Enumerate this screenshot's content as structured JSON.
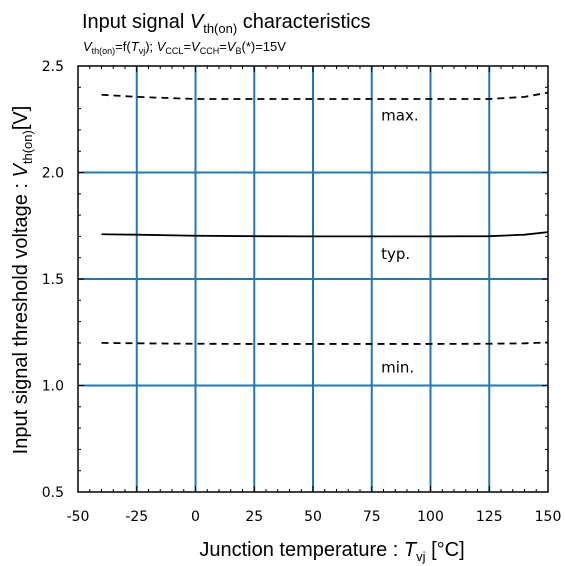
{
  "chart_data": {
    "type": "line",
    "title": {
      "prefix": "Input signal ",
      "symbol": "V",
      "symbol_sub": "th(on)",
      "suffix": " characteristics"
    },
    "subtitle": {
      "a": "V",
      "a_sub": "th(on)",
      "b": "=f(",
      "c": "T",
      "c_sub": "vj",
      "d": "); ",
      "e": "V",
      "e_sub": "CCL",
      "f": "=",
      "g": "V",
      "g_sub": "CCH",
      "h": "=",
      "i": "V",
      "i_sub": "B",
      "j": "(*)=15V"
    },
    "xlabel": {
      "text": "Junction temperature : ",
      "symbol": "T",
      "symbol_sub": "vj",
      "unit": " [°C]"
    },
    "ylabel": {
      "text": "Input signal threshold voltage : ",
      "symbol": "V",
      "symbol_sub": "th(on)",
      "unit": "[V]"
    },
    "xlim": [
      -50,
      150
    ],
    "ylim": [
      0.5,
      2.5
    ],
    "xticks": [
      -50,
      -25,
      0,
      25,
      50,
      75,
      100,
      125,
      150
    ],
    "xtick_labels": [
      "-50",
      "-25",
      "0",
      "25",
      "50",
      "75",
      "100",
      "125",
      "150"
    ],
    "yticks": [
      0.5,
      1.0,
      1.5,
      2.0,
      2.5
    ],
    "ytick_labels": [
      "0.5",
      "1.0",
      "1.5",
      "2.0",
      "2.5"
    ],
    "grid": true,
    "grid_color": "#1f78b8",
    "series": [
      {
        "name": "max.",
        "style": "dashed",
        "color": "#000000",
        "x": [
          -40,
          -25,
          0,
          25,
          50,
          75,
          100,
          125,
          140,
          150
        ],
        "y": [
          2.365,
          2.355,
          2.345,
          2.345,
          2.345,
          2.345,
          2.345,
          2.345,
          2.355,
          2.375
        ]
      },
      {
        "name": "typ.",
        "style": "solid",
        "color": "#000000",
        "x": [
          -40,
          -25,
          0,
          25,
          50,
          75,
          100,
          125,
          140,
          150
        ],
        "y": [
          1.71,
          1.708,
          1.703,
          1.701,
          1.7,
          1.7,
          1.7,
          1.701,
          1.708,
          1.72
        ]
      },
      {
        "name": "min.",
        "style": "dashed",
        "color": "#000000",
        "x": [
          -40,
          -25,
          0,
          25,
          50,
          75,
          100,
          125,
          140,
          150
        ],
        "y": [
          1.2,
          1.198,
          1.196,
          1.195,
          1.195,
          1.195,
          1.195,
          1.196,
          1.198,
          1.202
        ]
      }
    ],
    "annotations": [
      {
        "text": "max.",
        "x": 79,
        "y": 2.245
      },
      {
        "text": "typ.",
        "x": 79,
        "y": 1.595
      },
      {
        "text": "min.",
        "x": 79,
        "y": 1.06
      }
    ]
  }
}
